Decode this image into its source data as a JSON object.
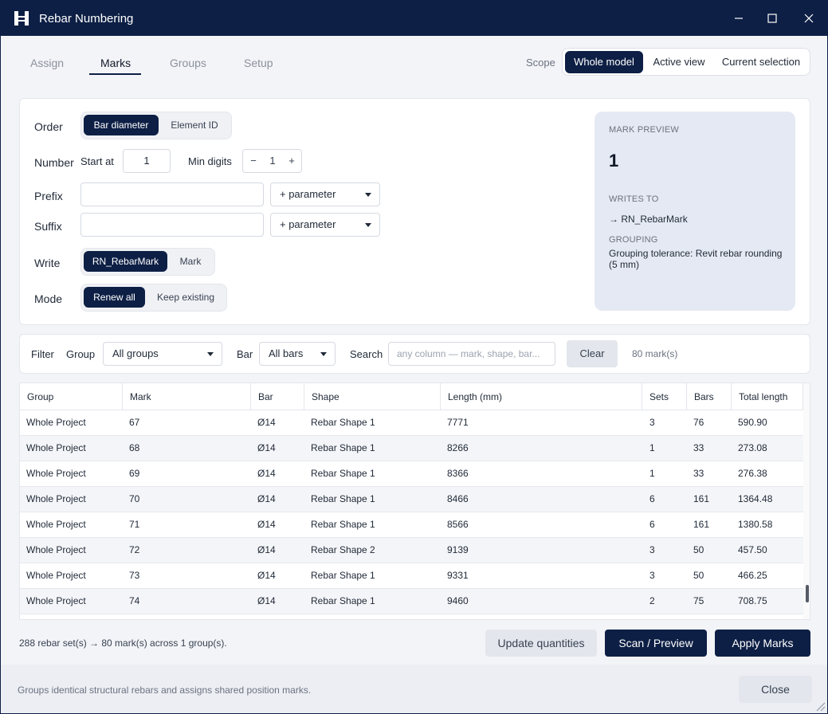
{
  "window": {
    "title": "Rebar Numbering"
  },
  "tabs": [
    {
      "label": "Assign"
    },
    {
      "label": "Marks"
    },
    {
      "label": "Groups"
    },
    {
      "label": "Setup"
    }
  ],
  "active_tab": "Marks",
  "scope": {
    "label": "Scope",
    "options": [
      {
        "label": "Whole model"
      },
      {
        "label": "Active view"
      },
      {
        "label": "Current selection"
      }
    ],
    "selected": "Whole model"
  },
  "settings": {
    "order": {
      "label": "Order",
      "options": [
        "Bar diameter",
        "Element ID"
      ],
      "selected": "Bar diameter"
    },
    "number": {
      "label": "Number",
      "start_label": "Start at",
      "start_value": "1",
      "min_digits_label": "Min digits",
      "min_digits_value": "1",
      "minus": "−",
      "plus": "+"
    },
    "prefix": {
      "label": "Prefix",
      "value": "",
      "param_label": "+ parameter"
    },
    "suffix": {
      "label": "Suffix",
      "value": "",
      "param_label": "+ parameter"
    },
    "write": {
      "label": "Write",
      "options": [
        "RN_RebarMark",
        "Mark"
      ],
      "selected": "RN_RebarMark"
    },
    "mode": {
      "label": "Mode",
      "options": [
        "Renew all",
        "Keep existing"
      ],
      "selected": "Renew all"
    }
  },
  "preview": {
    "heading": "MARK PREVIEW",
    "value": "1",
    "writes_heading": "WRITES TO",
    "writes_value": "→ RN_RebarMark",
    "grouping_heading": "GROUPING",
    "grouping_value": "Grouping tolerance: Revit rebar rounding (5 mm)"
  },
  "filter": {
    "label": "Filter",
    "group_label": "Group",
    "group_value": "All groups",
    "bar_label": "Bar",
    "bar_value": "All bars",
    "search_label": "Search",
    "search_placeholder": "any column — mark, shape, bar...",
    "clear_label": "Clear",
    "count_text": "80 mark(s)"
  },
  "table": {
    "columns": [
      "Group",
      "Mark",
      "Bar",
      "Shape",
      "Length (mm)",
      "Sets",
      "Bars",
      "Total length"
    ],
    "rows": [
      [
        "Whole Project",
        "67",
        "Ø14",
        "Rebar Shape 1",
        "7771",
        "3",
        "76",
        "590.90"
      ],
      [
        "Whole Project",
        "68",
        "Ø14",
        "Rebar Shape 1",
        "8266",
        "1",
        "33",
        "273.08"
      ],
      [
        "Whole Project",
        "69",
        "Ø14",
        "Rebar Shape 1",
        "8366",
        "1",
        "33",
        "276.38"
      ],
      [
        "Whole Project",
        "70",
        "Ø14",
        "Rebar Shape 1",
        "8466",
        "6",
        "161",
        "1364.48"
      ],
      [
        "Whole Project",
        "71",
        "Ø14",
        "Rebar Shape 1",
        "8566",
        "6",
        "161",
        "1380.58"
      ],
      [
        "Whole Project",
        "72",
        "Ø14",
        "Rebar Shape 2",
        "9139",
        "3",
        "50",
        "457.50"
      ],
      [
        "Whole Project",
        "73",
        "Ø14",
        "Rebar Shape 1",
        "9331",
        "3",
        "50",
        "466.25"
      ],
      [
        "Whole Project",
        "74",
        "Ø14",
        "Rebar Shape 1",
        "9460",
        "2",
        "75",
        "708.75"
      ]
    ]
  },
  "summary": "288 rebar set(s) → 80 mark(s) across 1 group(s).",
  "actions": {
    "update_label": "Update quantities",
    "scan_label": "Scan / Preview",
    "apply_label": "Apply Marks"
  },
  "footer": {
    "text": "Groups identical structural rebars and assigns shared position marks.",
    "close_label": "Close"
  },
  "colors": {
    "primary": "#0d1f45",
    "background": "#f3f4f8",
    "preview_bg": "#e5e9f3"
  }
}
